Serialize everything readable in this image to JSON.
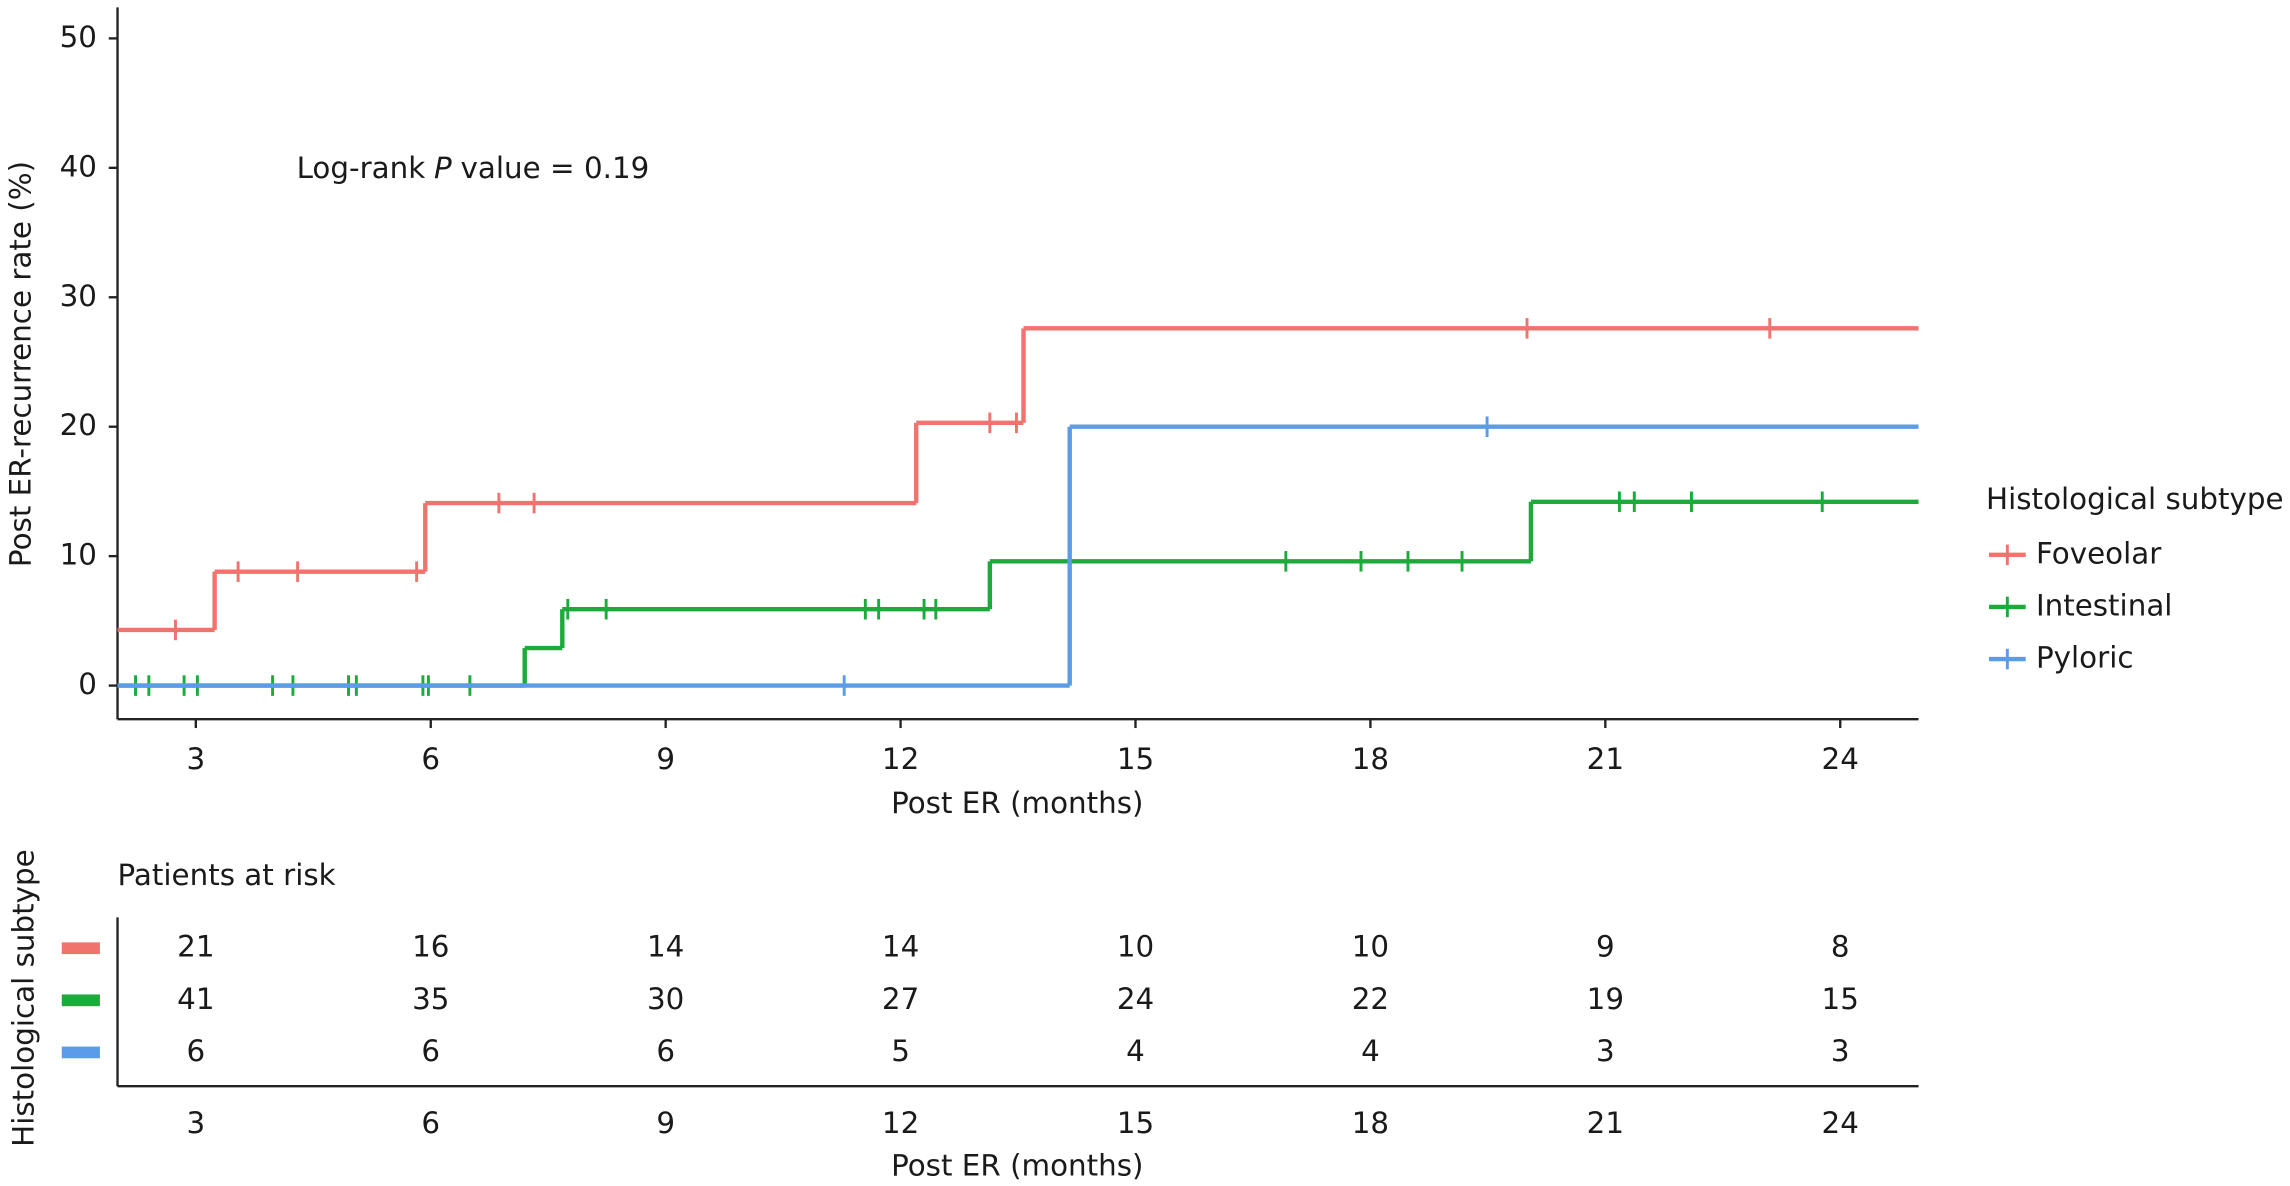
{
  "chart_data": {
    "type": "step",
    "ylabel": "Post ER-recurrence rate (%)",
    "xlabel": "Post ER (months)",
    "xlim": [
      2,
      25
    ],
    "ylim": [
      -2.6,
      52.4
    ],
    "xticks": [
      3,
      6,
      9,
      12,
      15,
      18,
      21,
      24
    ],
    "yticks": [
      0,
      10,
      20,
      30,
      40,
      50
    ],
    "annotation": {
      "prefix": "Log-rank",
      "italic": "P",
      "suffix": "value = 0.19"
    },
    "legend": {
      "title": "Histological subtype",
      "position": "right"
    },
    "series": [
      {
        "name": "Foveolar",
        "color": "#f0736e",
        "x": [
          2,
          3.24,
          5.93,
          12.2,
          13.57
        ],
        "values": [
          4.3,
          8.8,
          14.1,
          20.3,
          27.6
        ],
        "censor_x": [
          2.74,
          3.54,
          4.3,
          5.82,
          6.87,
          7.32,
          13.14,
          13.48,
          20.0,
          23.1
        ],
        "censor_values": [
          4.3,
          8.8,
          8.8,
          8.8,
          14.1,
          14.1,
          20.3,
          20.3,
          27.6,
          27.6
        ]
      },
      {
        "name": "Intestinal",
        "color": "#1bab3b",
        "x": [
          2,
          7.2,
          7.68,
          13.14,
          20.05
        ],
        "values": [
          0,
          2.9,
          5.9,
          9.6,
          14.2
        ],
        "censor_x": [
          2.23,
          2.4,
          2.85,
          3.02,
          3.98,
          4.24,
          4.95,
          5.05,
          5.9,
          5.97,
          6.5,
          7.75,
          8.24,
          11.55,
          11.72,
          12.3,
          12.45,
          16.92,
          17.88,
          18.48,
          19.17,
          21.18,
          21.37,
          22.1,
          23.77
        ],
        "censor_values": [
          0,
          0,
          0,
          0,
          0,
          0,
          0,
          0,
          0,
          0,
          0,
          5.9,
          5.9,
          5.9,
          5.9,
          5.9,
          5.9,
          9.6,
          9.6,
          9.6,
          9.6,
          14.2,
          14.2,
          14.2,
          14.2
        ]
      },
      {
        "name": "Pyloric",
        "color": "#5b9ce8",
        "x": [
          2,
          14.16
        ],
        "values": [
          0,
          20
        ],
        "censor_x": [
          11.28,
          19.49
        ],
        "censor_values": [
          0,
          20
        ]
      }
    ],
    "risk_table": {
      "title": "Patients at risk",
      "ylabel": "Histological subtype",
      "xlabel": "Post ER (months)",
      "x": [
        3,
        6,
        9,
        12,
        15,
        18,
        21,
        24
      ],
      "rows": [
        [
          21,
          16,
          14,
          14,
          10,
          10,
          9,
          8
        ],
        [
          41,
          35,
          30,
          27,
          24,
          22,
          19,
          15
        ],
        [
          6,
          6,
          6,
          5,
          4,
          4,
          3,
          3
        ]
      ]
    }
  }
}
